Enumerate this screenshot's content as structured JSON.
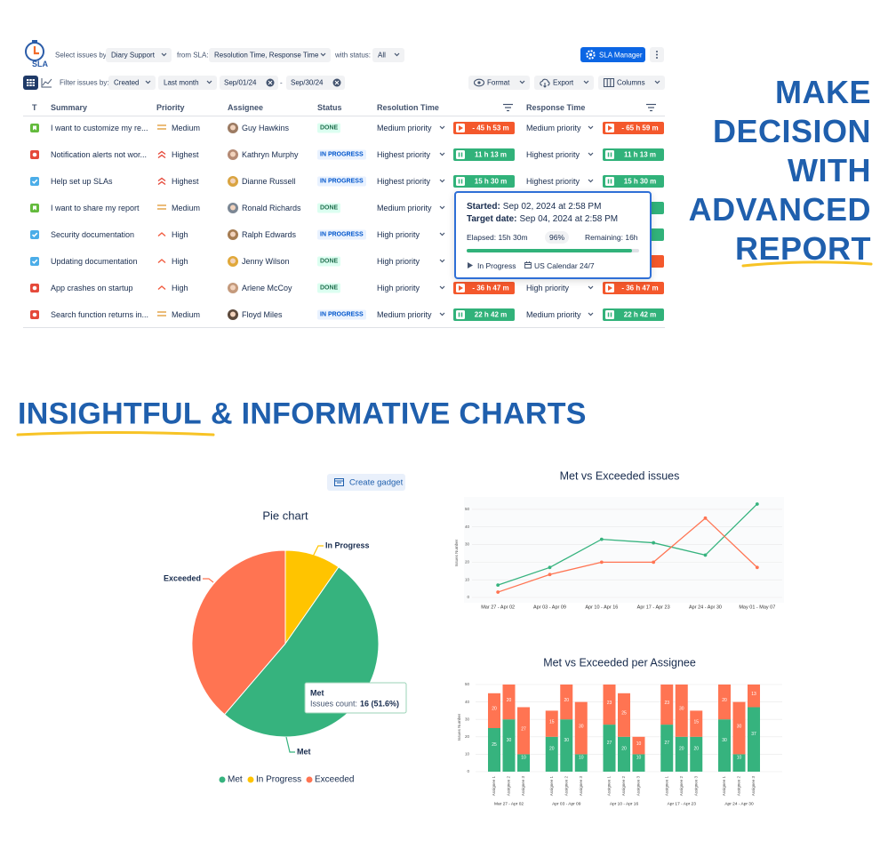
{
  "toolbar": {
    "logo": "SLA",
    "select_label": "Select issues by:",
    "select_value": "Diary Support",
    "sla_label": "from SLA:",
    "sla_value": "Resolution Time, Response Time",
    "status_label": "with status:",
    "status_value": "All",
    "manager_button": "SLA Manager",
    "filter_label": "Filter issues by:",
    "filter_field": "Created",
    "filter_period": "Last month",
    "date_from": "Sep/01/24",
    "date_separator": "-",
    "date_to": "Sep/30/24",
    "format": "Format",
    "export": "Export",
    "columns": "Columns"
  },
  "table": {
    "headers": [
      "T",
      "Summary",
      "Priority",
      "Assignee",
      "Status",
      "Resolution Time",
      "Response Time"
    ],
    "rows": [
      {
        "type": "story",
        "summary": "I want to customize my re...",
        "priority": "Medium",
        "priority_icon": "medium",
        "assignee": "Guy Hawkins",
        "status": "DONE",
        "status_style": "done",
        "resolution_priority": "Medium priority",
        "resolution_timer": "- 45 h 53 m",
        "resolution_state": "exceeded",
        "response_priority": "Medium priority",
        "response_timer": "- 65 h 59 m",
        "response_state": "exceeded"
      },
      {
        "type": "bug",
        "summary": "Notification alerts not wor...",
        "priority": "Highest",
        "priority_icon": "highest",
        "assignee": "Kathryn Murphy",
        "status": "IN PROGRESS",
        "status_style": "progress",
        "resolution_priority": "Highest priority",
        "resolution_timer": "11 h 13 m",
        "resolution_state": "running",
        "response_priority": "Highest priority",
        "response_timer": "11 h 13 m",
        "response_state": "running"
      },
      {
        "type": "task",
        "summary": "Help set up SLAs",
        "priority": "Highest",
        "priority_icon": "highest",
        "assignee": "Dianne Russell",
        "status": "IN PROGRESS",
        "status_style": "progress",
        "resolution_priority": "Highest priority",
        "resolution_timer": "15 h 30 m",
        "resolution_state": "running",
        "response_priority": "Highest priority",
        "response_timer": "15 h 30 m",
        "response_state": "running"
      },
      {
        "type": "story",
        "summary": "I want to share my report",
        "priority": "Medium",
        "priority_icon": "medium",
        "assignee": "Ronald Richards",
        "status": "DONE",
        "status_style": "done",
        "resolution_priority": "Medium priority",
        "resolution_timer": null,
        "resolution_state": null,
        "response_priority": null,
        "response_timer": null,
        "response_state": "running"
      },
      {
        "type": "task",
        "summary": "Security documentation",
        "priority": "High",
        "priority_icon": "high",
        "assignee": "Ralph Edwards",
        "status": "IN PROGRESS",
        "status_style": "progress",
        "resolution_priority": "High priority",
        "resolution_timer": null,
        "resolution_state": null,
        "response_priority": null,
        "response_timer": null,
        "response_state": "running"
      },
      {
        "type": "task",
        "summary": "Updating documentation",
        "priority": "High",
        "priority_icon": "high",
        "assignee": "Jenny Wilson",
        "status": "DONE",
        "status_style": "done",
        "resolution_priority": "High priority",
        "resolution_timer": null,
        "resolution_state": null,
        "response_priority": null,
        "response_timer": null,
        "response_state": "exceeded"
      },
      {
        "type": "bug",
        "summary": "App crashes on startup",
        "priority": "High",
        "priority_icon": "high",
        "assignee": "Arlene McCoy",
        "status": "DONE",
        "status_style": "done",
        "resolution_priority": "High priority",
        "resolution_timer": "- 36 h 47 m",
        "resolution_state": "exceeded",
        "response_priority": "High priority",
        "response_timer": "- 36 h 47 m",
        "response_state": "exceeded"
      },
      {
        "type": "bug",
        "summary": "Search function returns in...",
        "priority": "Medium",
        "priority_icon": "medium",
        "assignee": "Floyd Miles",
        "status": "IN PROGRESS",
        "status_style": "progress",
        "resolution_priority": "Medium priority",
        "resolution_timer": "22 h 42 m",
        "resolution_state": "running",
        "response_priority": "Medium priority",
        "response_timer": "22 h 42 m",
        "response_state": "running"
      }
    ]
  },
  "sla_tooltip": {
    "started_label": "Started:",
    "started": "Sep 02, 2024 at 2:58 PM",
    "target_label": "Target date:",
    "target": "Sep 04, 2024 at 2:58 PM",
    "elapsed": "Elapsed: 15h 30m",
    "progress": {
      "value": 96,
      "label": "96%"
    },
    "remaining": "Remaining: 16h",
    "status": "In Progress",
    "calendar": "US Calendar 24/7"
  },
  "headline": [
    "MAKE",
    "DECISION",
    "WITH",
    "ADVANCED",
    "REPORT"
  ],
  "section_title": {
    "highlight": "INSIGHTFUL",
    "rest": "& INFORMATIVE CHARTS"
  },
  "create_gadget": "Create gadget",
  "chart_data": [
    {
      "type": "pie",
      "title": "Pie chart",
      "categories": [
        "In Progress",
        "Met",
        "Exceeded"
      ],
      "values": [
        3,
        16,
        12
      ],
      "colors": [
        "#ffc400",
        "#36b37e",
        "#ff7452"
      ],
      "legend": [
        {
          "name": "Met",
          "color": "#36b37e"
        },
        {
          "name": "In Progress",
          "color": "#ffc400"
        },
        {
          "name": "Exceeded",
          "color": "#ff7452"
        }
      ],
      "tooltip": {
        "name": "Met",
        "label": "Issues count:",
        "value": "16 (51.6%)"
      }
    },
    {
      "type": "line",
      "title": "Met vs Exceeded issues",
      "y_label": "Issues Number",
      "categories": [
        "Mar 27 - Apr 02",
        "Apr 03 - Apr 09",
        "Apr 10 - Apr 16",
        "Apr 17 - Apr 23",
        "Apr 24 - Apr 30",
        "May 01 - May 07"
      ],
      "series": [
        {
          "color": "#36b37e",
          "values": [
            7,
            17,
            33,
            31,
            24,
            53
          ]
        },
        {
          "color": "#ff7452",
          "values": [
            3,
            13,
            20,
            20,
            45,
            17
          ]
        }
      ],
      "ylim": [
        0,
        55
      ],
      "yticks": [
        0,
        10,
        20,
        30,
        40,
        50
      ],
      "grid": true
    },
    {
      "type": "stacked_bar",
      "title": "Met vs Exceeded per Assignee",
      "y_label": "Issues Number",
      "groups": [
        "Mar 27 - Apr 02",
        "Apr 03 - Apr 09",
        "Apr 10 - Apr 16",
        "Apr 17 - Apr 23",
        "Apr 24 - Apr 30"
      ],
      "categories": [
        "Assignee 1",
        "Assignee 2",
        "Assignee 3",
        "Assignee 1",
        "Assignee 2",
        "Assignee 3",
        "Assignee 1",
        "Assignee 2",
        "Assignee 3",
        "Assignee 1",
        "Assignee 2",
        "Assignee 3",
        "Assignee 1",
        "Assignee 2",
        "Assignee 3"
      ],
      "series": [
        {
          "color": "#36b37e",
          "values": [
            25,
            30,
            10,
            20,
            30,
            10,
            27,
            20,
            10,
            27,
            20,
            20,
            30,
            10,
            37
          ]
        },
        {
          "color": "#ff7452",
          "values": [
            20,
            20,
            27,
            15,
            20,
            30,
            23,
            25,
            10,
            23,
            30,
            15,
            20,
            30,
            13
          ]
        }
      ],
      "ylim": [
        0,
        50
      ],
      "yticks": [
        0,
        10,
        20,
        30,
        40,
        50
      ],
      "grid": true
    }
  ]
}
